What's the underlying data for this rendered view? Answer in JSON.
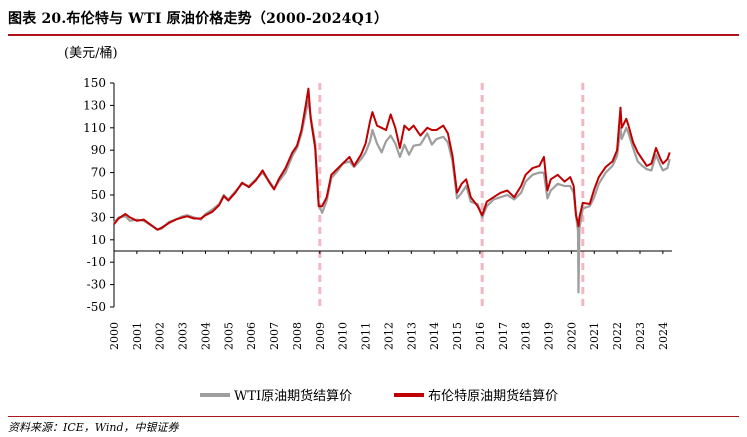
{
  "title": "图表 20.布伦特与 WTI 原油价格走势（2000-2024Q1）",
  "unit_label": "(美元/桶)",
  "source": "资料来源：ICE，Wind，中银证券",
  "colors": {
    "accent": "#b0141b",
    "wti": "#9e9e9e",
    "brent": "#c00000",
    "recession": "#f4b6c2"
  },
  "chart_data": {
    "type": "line",
    "title": "图表 20.布伦特与 WTI 原油价格走势（2000-2024Q1）",
    "ylabel": "(美元/桶)",
    "xlabel": "",
    "ylim": [
      -50,
      150
    ],
    "yticks": [
      -50,
      -30,
      -10,
      10,
      30,
      50,
      70,
      90,
      110,
      130,
      150
    ],
    "xlim": [
      2000,
      2024.4
    ],
    "xticks": [
      "2000",
      "2001",
      "2002",
      "2003",
      "2004",
      "2005",
      "2006",
      "2007",
      "2008",
      "2009",
      "2010",
      "2011",
      "2012",
      "2013",
      "2014",
      "2015",
      "2016",
      "2017",
      "2018",
      "2019",
      "2020",
      "2021",
      "2022",
      "2023",
      "2024"
    ],
    "grid": false,
    "legend": "bottom",
    "markers": [
      2009.0,
      2016.1,
      2020.5
    ],
    "series": [
      {
        "name": "WTI原油期货结算价",
        "color": "#9e9e9e",
        "x": [
          2000.0,
          2000.2,
          2000.5,
          2000.7,
          2001.0,
          2001.3,
          2001.7,
          2001.9,
          2002.1,
          2002.4,
          2002.7,
          2003.0,
          2003.2,
          2003.5,
          2003.8,
          2004.0,
          2004.3,
          2004.6,
          2004.8,
          2005.0,
          2005.3,
          2005.6,
          2005.9,
          2006.2,
          2006.5,
          2006.8,
          2007.0,
          2007.2,
          2007.5,
          2007.8,
          2008.0,
          2008.2,
          2008.4,
          2008.5,
          2008.6,
          2008.8,
          2008.95,
          2009.1,
          2009.3,
          2009.5,
          2009.8,
          2010.0,
          2010.3,
          2010.5,
          2010.8,
          2011.0,
          2011.2,
          2011.3,
          2011.5,
          2011.7,
          2011.9,
          2012.1,
          2012.3,
          2012.5,
          2012.7,
          2012.9,
          2013.1,
          2013.4,
          2013.7,
          2013.9,
          2014.1,
          2014.4,
          2014.6,
          2014.8,
          2015.0,
          2015.2,
          2015.4,
          2015.6,
          2015.9,
          2016.1,
          2016.3,
          2016.6,
          2016.9,
          2017.2,
          2017.5,
          2017.8,
          2018.0,
          2018.3,
          2018.6,
          2018.8,
          2018.95,
          2019.1,
          2019.4,
          2019.7,
          2019.95,
          2020.1,
          2020.2,
          2020.29,
          2020.31,
          2020.35,
          2020.5,
          2020.8,
          2021.0,
          2021.2,
          2021.5,
          2021.8,
          2022.0,
          2022.15,
          2022.2,
          2022.4,
          2022.5,
          2022.7,
          2022.9,
          2023.1,
          2023.3,
          2023.5,
          2023.7,
          2023.9,
          2024.0,
          2024.2,
          2024.3
        ],
        "y": [
          25,
          30,
          31,
          27,
          28,
          27,
          22,
          19,
          20,
          26,
          28,
          31,
          32,
          30,
          28,
          33,
          37,
          42,
          50,
          46,
          53,
          60,
          58,
          64,
          70,
          62,
          56,
          62,
          70,
          85,
          92,
          105,
          125,
          134,
          120,
          96,
          42,
          34,
          45,
          65,
          72,
          78,
          80,
          75,
          82,
          88,
          98,
          108,
          96,
          88,
          98,
          103,
          96,
          84,
          95,
          86,
          94,
          95,
          105,
          95,
          100,
          102,
          97,
          80,
          47,
          52,
          58,
          44,
          42,
          30,
          40,
          46,
          48,
          50,
          46,
          52,
          62,
          68,
          70,
          70,
          47,
          54,
          60,
          58,
          58,
          52,
          32,
          18,
          -37,
          20,
          38,
          40,
          48,
          60,
          70,
          76,
          85,
          110,
          100,
          110,
          105,
          92,
          80,
          76,
          73,
          72,
          86,
          76,
          72,
          74,
          82
        ]
      },
      {
        "name": "布伦特原油期货结算价",
        "color": "#c00000",
        "x": [
          2000.0,
          2000.2,
          2000.5,
          2000.7,
          2001.0,
          2001.3,
          2001.7,
          2001.9,
          2002.1,
          2002.4,
          2002.7,
          2003.0,
          2003.2,
          2003.5,
          2003.8,
          2004.0,
          2004.3,
          2004.6,
          2004.8,
          2005.0,
          2005.3,
          2005.6,
          2005.9,
          2006.2,
          2006.5,
          2006.8,
          2007.0,
          2007.2,
          2007.5,
          2007.8,
          2008.0,
          2008.2,
          2008.4,
          2008.5,
          2008.6,
          2008.8,
          2008.95,
          2009.1,
          2009.3,
          2009.5,
          2009.8,
          2010.0,
          2010.3,
          2010.5,
          2010.8,
          2011.0,
          2011.2,
          2011.3,
          2011.5,
          2011.7,
          2011.9,
          2012.1,
          2012.3,
          2012.5,
          2012.7,
          2012.9,
          2013.1,
          2013.4,
          2013.7,
          2013.9,
          2014.1,
          2014.4,
          2014.6,
          2014.8,
          2015.0,
          2015.2,
          2015.4,
          2015.6,
          2015.9,
          2016.1,
          2016.3,
          2016.6,
          2016.9,
          2017.2,
          2017.5,
          2017.8,
          2018.0,
          2018.3,
          2018.6,
          2018.8,
          2018.95,
          2019.1,
          2019.4,
          2019.7,
          2019.95,
          2020.1,
          2020.2,
          2020.29,
          2020.31,
          2020.35,
          2020.5,
          2020.8,
          2021.0,
          2021.2,
          2021.5,
          2021.8,
          2022.0,
          2022.15,
          2022.2,
          2022.4,
          2022.5,
          2022.7,
          2022.9,
          2023.1,
          2023.3,
          2023.5,
          2023.7,
          2023.9,
          2024.0,
          2024.2,
          2024.3
        ],
        "y": [
          24,
          29,
          33,
          30,
          27,
          28,
          22,
          19,
          21,
          25,
          28,
          30,
          31,
          29,
          29,
          32,
          35,
          41,
          49,
          45,
          52,
          61,
          57,
          63,
          72,
          61,
          55,
          64,
          74,
          88,
          94,
          108,
          132,
          145,
          118,
          92,
          40,
          40,
          48,
          68,
          74,
          78,
          84,
          76,
          86,
          96,
          116,
          124,
          112,
          110,
          108,
          122,
          110,
          92,
          112,
          108,
          112,
          103,
          110,
          108,
          108,
          112,
          105,
          85,
          52,
          60,
          64,
          48,
          40,
          32,
          44,
          48,
          52,
          54,
          48,
          58,
          68,
          74,
          76,
          84,
          54,
          64,
          68,
          62,
          66,
          58,
          32,
          25,
          22,
          30,
          43,
          42,
          55,
          66,
          75,
          80,
          90,
          128,
          110,
          118,
          112,
          97,
          88,
          82,
          76,
          78,
          92,
          82,
          78,
          82,
          88
        ]
      }
    ]
  }
}
